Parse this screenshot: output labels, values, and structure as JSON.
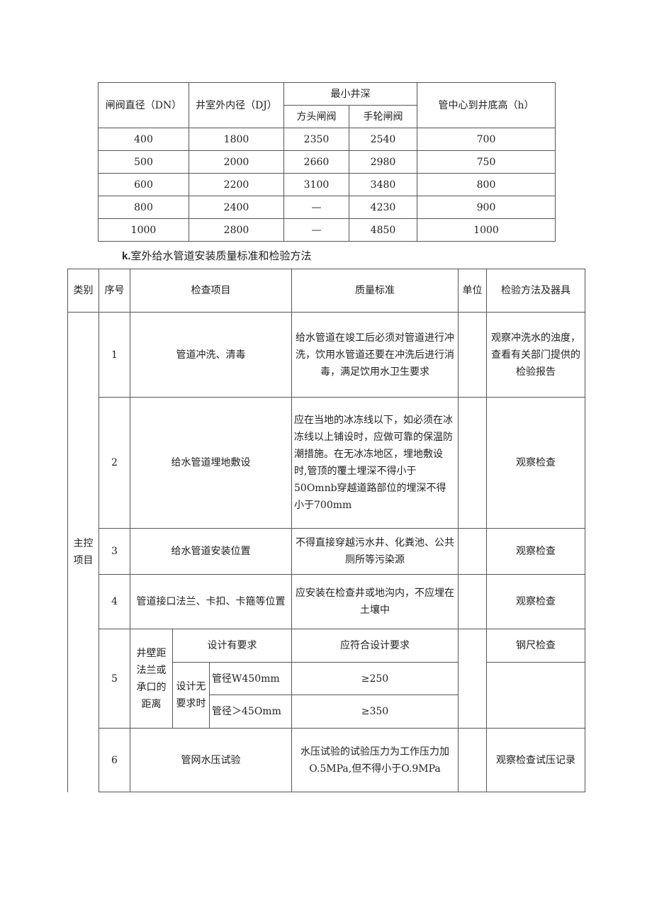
{
  "table1": {
    "headers": {
      "dn": "闸阀直径（DN）",
      "dj": "井室外内径（DJ）",
      "min_depth": "最小井深",
      "square": "方头闸阀",
      "wheel": "手轮闸阀",
      "h": "管中心到井底高（h）"
    },
    "rows": [
      [
        "400",
        "1800",
        "2350",
        "2540",
        "700"
      ],
      [
        "500",
        "2000",
        "2660",
        "2980",
        "750"
      ],
      [
        "600",
        "2200",
        "3100",
        "3480",
        "800"
      ],
      [
        "800",
        "2400",
        "—",
        "4230",
        "900"
      ],
      [
        "1000",
        "2800",
        "—",
        "4850",
        "1000"
      ]
    ]
  },
  "section_title": {
    "prefix": "k.",
    "text": "室外给水管道安装质量标准和检验方法"
  },
  "table2": {
    "headers": {
      "category": "类别",
      "seq": "序号",
      "item": "检查项目",
      "standard": "质量标准",
      "unit": "单位",
      "method": "检验方法及器具"
    },
    "category_main": "主控项目",
    "rows": [
      {
        "seq": "1",
        "item": "管道冲洗、清毒",
        "standard": "给水管道在竣工后必须对管道进行冲洗，饮用水管道还要在冲洗后进行消毒，满足饮用水卫生要求",
        "method": "观察冲洗水的浊度，查看有关部门提供的检验报告"
      },
      {
        "seq": "2",
        "item": "给水管道埋地敷设",
        "standard": "应在当地的冰冻线以下，如必须在冰冻线以上铺设时，应做可靠的保温防潮措施。在无冰冻地区，埋地敷设时,管顶的覆土埋深不得小于50Omnb穿越道路部位的埋深不得小于700mm",
        "method": "观察检查"
      },
      {
        "seq": "3",
        "item": "给水管道安装位置",
        "standard": "不得直接穿越污水井、化粪池、公共厕所等污染源",
        "method": "观察检查"
      },
      {
        "seq": "4",
        "item": "管道接口法兰、卡扣、卡箍等位置",
        "standard": "应安装在检查井或地沟内，不应埋在土壤中",
        "method": "观察检查"
      },
      {
        "seq": "5",
        "item": "井壁距法兰或承口的距离",
        "sub1": "设计有要求",
        "sub1_standard": "应符合设计要求",
        "sub1_method": "钢尺检查",
        "sub2": "设计无要求时",
        "sub2a": "管径W450mm",
        "sub2a_standard": "≥250",
        "sub2b": "管径＞45Omm",
        "sub2b_standard": "≥350"
      },
      {
        "seq": "6",
        "item": "管网水压试验",
        "standard": "水压试验的试验压力为工作压力加O.5MPa,但不得小于O.9MPa",
        "method": "观察检查试压记录"
      }
    ]
  }
}
